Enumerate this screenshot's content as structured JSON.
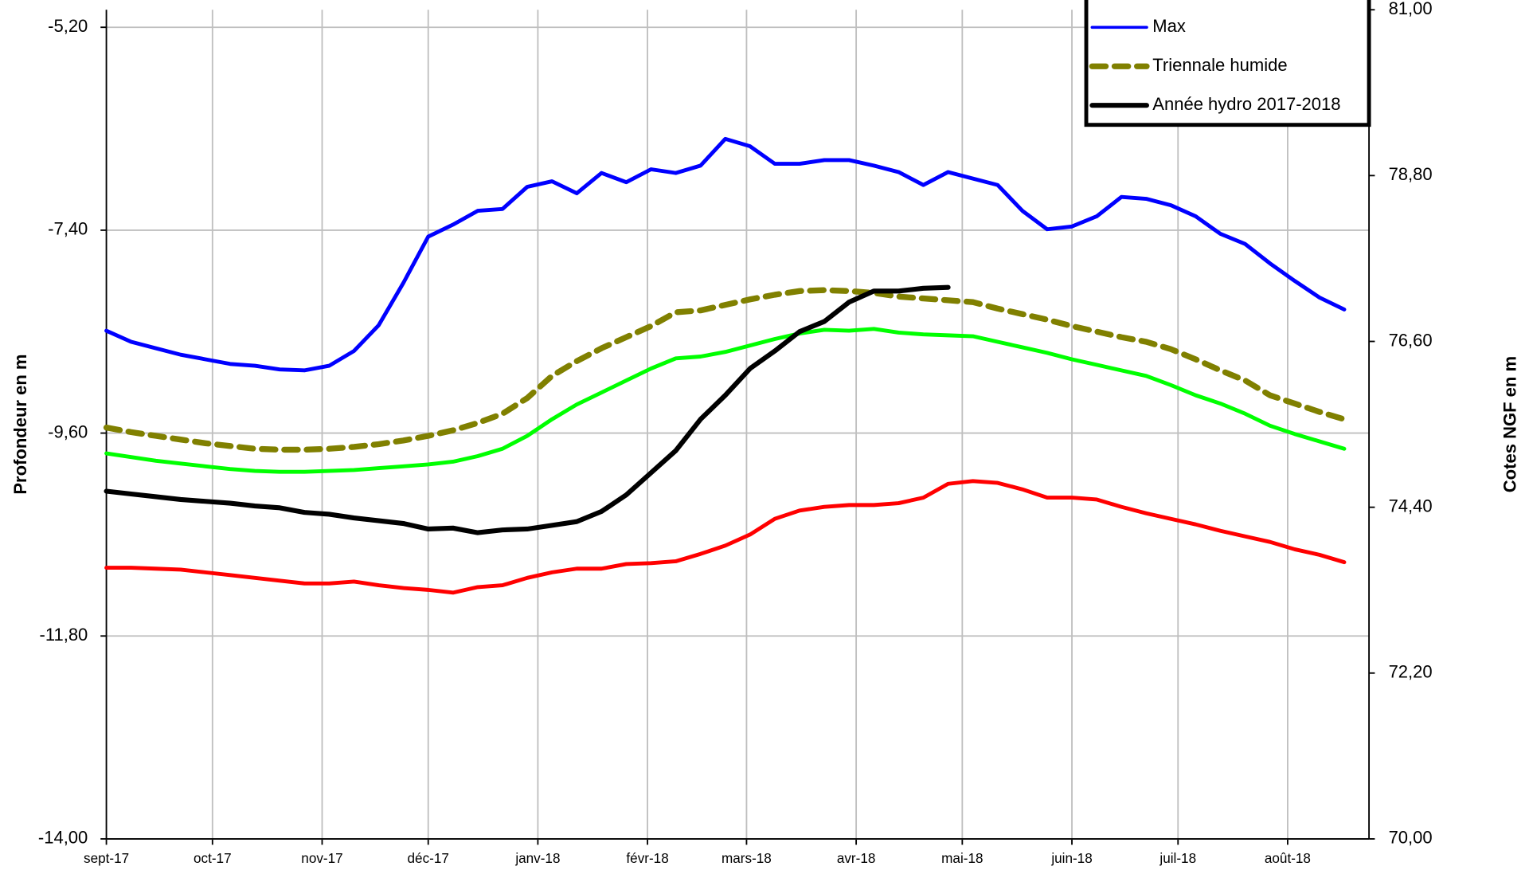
{
  "chart_data": {
    "type": "line",
    "y_label": "Profondeur en m",
    "y2_label": "Cotes NGF en m",
    "x": [
      0,
      7,
      14,
      21,
      28,
      35,
      42,
      49,
      56,
      63,
      70,
      77,
      84,
      91,
      98,
      105,
      112,
      119,
      126,
      133,
      140,
      147,
      154,
      161,
      168,
      175,
      182,
      189,
      196,
      203,
      210,
      217,
      224,
      231,
      238,
      245,
      252,
      259,
      266,
      273,
      280,
      287,
      294,
      301,
      308,
      315,
      322,
      329,
      336,
      343,
      350
    ],
    "xlim": [
      0,
      357
    ],
    "xticks": [
      {
        "value": 0,
        "label": "sept-17"
      },
      {
        "value": 30,
        "label": "oct-17"
      },
      {
        "value": 61,
        "label": "nov-17"
      },
      {
        "value": 91,
        "label": "déc-17"
      },
      {
        "value": 122,
        "label": "janv-18"
      },
      {
        "value": 153,
        "label": "févr-18"
      },
      {
        "value": 181,
        "label": "mars-18"
      },
      {
        "value": 212,
        "label": "avr-18"
      },
      {
        "value": 242,
        "label": "mai-18"
      },
      {
        "value": 273,
        "label": "juin-18"
      },
      {
        "value": 303,
        "label": "juil-18"
      },
      {
        "value": 334,
        "label": "août-18"
      }
    ],
    "ylim": [
      -14,
      -5.01
    ],
    "yticks": [
      {
        "value": -14,
        "label": "-14,00"
      },
      {
        "value": -11.8,
        "label": "-11,80"
      },
      {
        "value": -9.6,
        "label": "-9,60"
      },
      {
        "value": -7.4,
        "label": "-7,40"
      },
      {
        "value": -5.2,
        "label": "-5,20"
      }
    ],
    "y2lim": [
      70,
      81
    ],
    "y2ticks": [
      {
        "value": 70,
        "label": "70,00"
      },
      {
        "value": 72.2,
        "label": "72,20"
      },
      {
        "value": 74.4,
        "label": "74,40"
      },
      {
        "value": 76.6,
        "label": "76,60"
      },
      {
        "value": 78.8,
        "label": "78,80"
      },
      {
        "value": 81,
        "label": "81,00"
      }
    ],
    "grid": true,
    "legend": "upper right",
    "series": [
      {
        "name": "Max",
        "color": "#0000ff",
        "values": [
          -8.49,
          -8.61,
          -8.68,
          -8.75,
          -8.8,
          -8.85,
          -8.87,
          -8.91,
          -8.92,
          -8.87,
          -8.71,
          -8.43,
          -7.97,
          -7.47,
          -7.34,
          -7.19,
          -7.17,
          -6.93,
          -6.87,
          -7.0,
          -6.78,
          -6.88,
          -6.74,
          -6.78,
          -6.7,
          -6.41,
          -6.49,
          -6.68,
          -6.68,
          -6.64,
          -6.64,
          -6.7,
          -6.77,
          -6.91,
          -6.77,
          -6.84,
          -6.91,
          -7.19,
          -7.39,
          -7.36,
          -7.25,
          -7.04,
          -7.06,
          -7.13,
          -7.25,
          -7.44,
          -7.55,
          -7.76,
          -7.95,
          -8.13,
          -8.26
        ]
      },
      {
        "name": "Triennale humide",
        "color": "#808000",
        "dashed": true,
        "values": [
          -9.54,
          -9.59,
          -9.63,
          -9.67,
          -9.71,
          -9.74,
          -9.77,
          -9.78,
          -9.78,
          -9.77,
          -9.75,
          -9.72,
          -9.68,
          -9.63,
          -9.57,
          -9.49,
          -9.39,
          -9.22,
          -8.98,
          -8.82,
          -8.68,
          -8.56,
          -8.44,
          -8.29,
          -8.27,
          -8.21,
          -8.15,
          -8.1,
          -8.06,
          -8.05,
          -8.06,
          -8.08,
          -8.12,
          -8.14,
          -8.16,
          -8.18,
          -8.25,
          -8.31,
          -8.37,
          -8.44,
          -8.5,
          -8.56,
          -8.61,
          -8.69,
          -8.8,
          -8.92,
          -9.03,
          -9.19,
          -9.28,
          -9.37,
          -9.45
        ]
      },
      {
        "name": "Année hydro 2017-2018",
        "color": "#000000",
        "values": [
          -10.23,
          -10.26,
          -10.29,
          -10.32,
          -10.34,
          -10.36,
          -10.39,
          -10.41,
          -10.46,
          -10.48,
          -10.52,
          -10.55,
          -10.58,
          -10.64,
          -10.63,
          -10.68,
          -10.65,
          -10.64,
          -10.6,
          -10.56,
          -10.45,
          -10.27,
          -10.03,
          -9.79,
          -9.45,
          -9.19,
          -8.9,
          -8.71,
          -8.5,
          -8.39,
          -8.18,
          -8.06,
          -8.06,
          -8.03,
          -8.02,
          null,
          null,
          null,
          null,
          null,
          null,
          null,
          null,
          null,
          null,
          null,
          null,
          null,
          null,
          null,
          null
        ]
      },
      {
        "color": "#00ff00",
        "values": [
          -9.82,
          -9.86,
          -9.9,
          -9.93,
          -9.96,
          -9.99,
          -10.01,
          -10.02,
          -10.02,
          -10.01,
          -10.0,
          -9.98,
          -9.96,
          -9.94,
          -9.91,
          -9.85,
          -9.77,
          -9.63,
          -9.45,
          -9.29,
          -9.16,
          -9.03,
          -8.9,
          -8.79,
          -8.77,
          -8.72,
          -8.65,
          -8.58,
          -8.52,
          -8.48,
          -8.49,
          -8.47,
          -8.51,
          -8.53,
          -8.54,
          -8.55,
          -8.61,
          -8.67,
          -8.73,
          -8.8,
          -8.86,
          -8.92,
          -8.98,
          -9.08,
          -9.19,
          -9.28,
          -9.39,
          -9.52,
          -9.61,
          -9.69,
          -9.77
        ]
      },
      {
        "color": "#ff0000",
        "values": [
          -11.06,
          -11.06,
          -11.07,
          -11.08,
          -11.11,
          -11.14,
          -11.17,
          -11.2,
          -11.23,
          -11.23,
          -11.21,
          -11.25,
          -11.28,
          -11.3,
          -11.33,
          -11.27,
          -11.25,
          -11.17,
          -11.11,
          -11.07,
          -11.07,
          -11.02,
          -11.01,
          -10.99,
          -10.91,
          -10.82,
          -10.7,
          -10.53,
          -10.44,
          -10.4,
          -10.38,
          -10.38,
          -10.36,
          -10.3,
          -10.15,
          -10.12,
          -10.14,
          -10.21,
          -10.3,
          -10.3,
          -10.32,
          -10.4,
          -10.47,
          -10.53,
          -10.59,
          -10.66,
          -10.72,
          -10.78,
          -10.86,
          -10.92,
          -11.0
        ]
      }
    ]
  }
}
